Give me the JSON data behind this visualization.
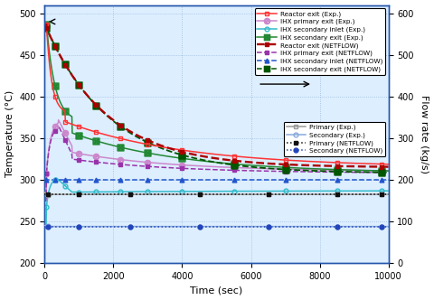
{
  "xlabel": "Time (sec)",
  "ylabel_left": "Temperature (°C)",
  "ylabel_right": "Flow rate (kg/s)",
  "xlim": [
    0,
    10000
  ],
  "ylim_left": [
    200,
    510
  ],
  "ylim_right": [
    0,
    620
  ],
  "yticks_left": [
    200,
    250,
    300,
    350,
    400,
    450,
    500
  ],
  "yticks_right": [
    0,
    100,
    200,
    300,
    400,
    500,
    600
  ],
  "xticks": [
    0,
    2000,
    4000,
    6000,
    8000,
    10000
  ],
  "temp_colors": {
    "reactor_exit_exp": "#ff3333",
    "ihx_primary_exit_exp": "#cc88cc",
    "ihx_secondary_inlet_exp": "#33bbcc",
    "ihx_secondary_exit_exp": "#228833",
    "reactor_exit_net": "#aa0000",
    "ihx_primary_exit_net": "#9933aa",
    "ihx_secondary_inlet_net": "#2255cc",
    "ihx_secondary_exit_net": "#005500"
  },
  "flow_colors": {
    "primary_exp": "#999999",
    "secondary_exp": "#88aadd",
    "primary_net": "#111111",
    "secondary_net": "#2244bb"
  },
  "background": "#ddeeff",
  "grid_color": "#99bbdd"
}
